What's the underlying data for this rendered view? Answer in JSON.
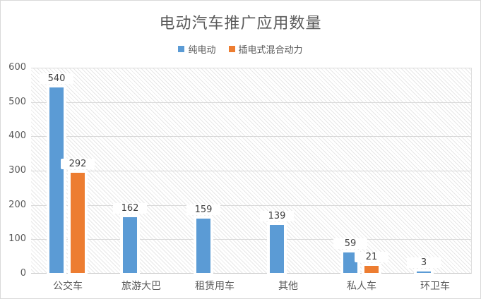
{
  "chart_data": {
    "type": "bar",
    "title": "电动汽车推广应用数量",
    "categories": [
      "公交车",
      "旅游大巴",
      "租赁用车",
      "其他",
      "私人车",
      "环卫车"
    ],
    "series": [
      {
        "name": "纯电动",
        "color": "#5B9BD5",
        "values": [
          540,
          162,
          159,
          139,
          59,
          3
        ]
      },
      {
        "name": "插电式混合动力",
        "color": "#ED7D31",
        "values": [
          292,
          null,
          null,
          null,
          21,
          null
        ]
      }
    ],
    "xlabel": "",
    "ylabel": "",
    "ylim": [
      0,
      600
    ],
    "yticks": [
      0,
      100,
      200,
      300,
      400,
      500,
      600
    ],
    "grid": true,
    "legend_position": "top",
    "plot_background": "diagonal-hatch",
    "colors": {
      "grid": "#D9D9D9",
      "axis_line": "#C6C6C6",
      "tick_text": "#595959",
      "value_label_text": "#404040",
      "title_text": "#595959",
      "hatch_line": "#E7E7E7",
      "chart_border": "#D9D9D9"
    }
  }
}
